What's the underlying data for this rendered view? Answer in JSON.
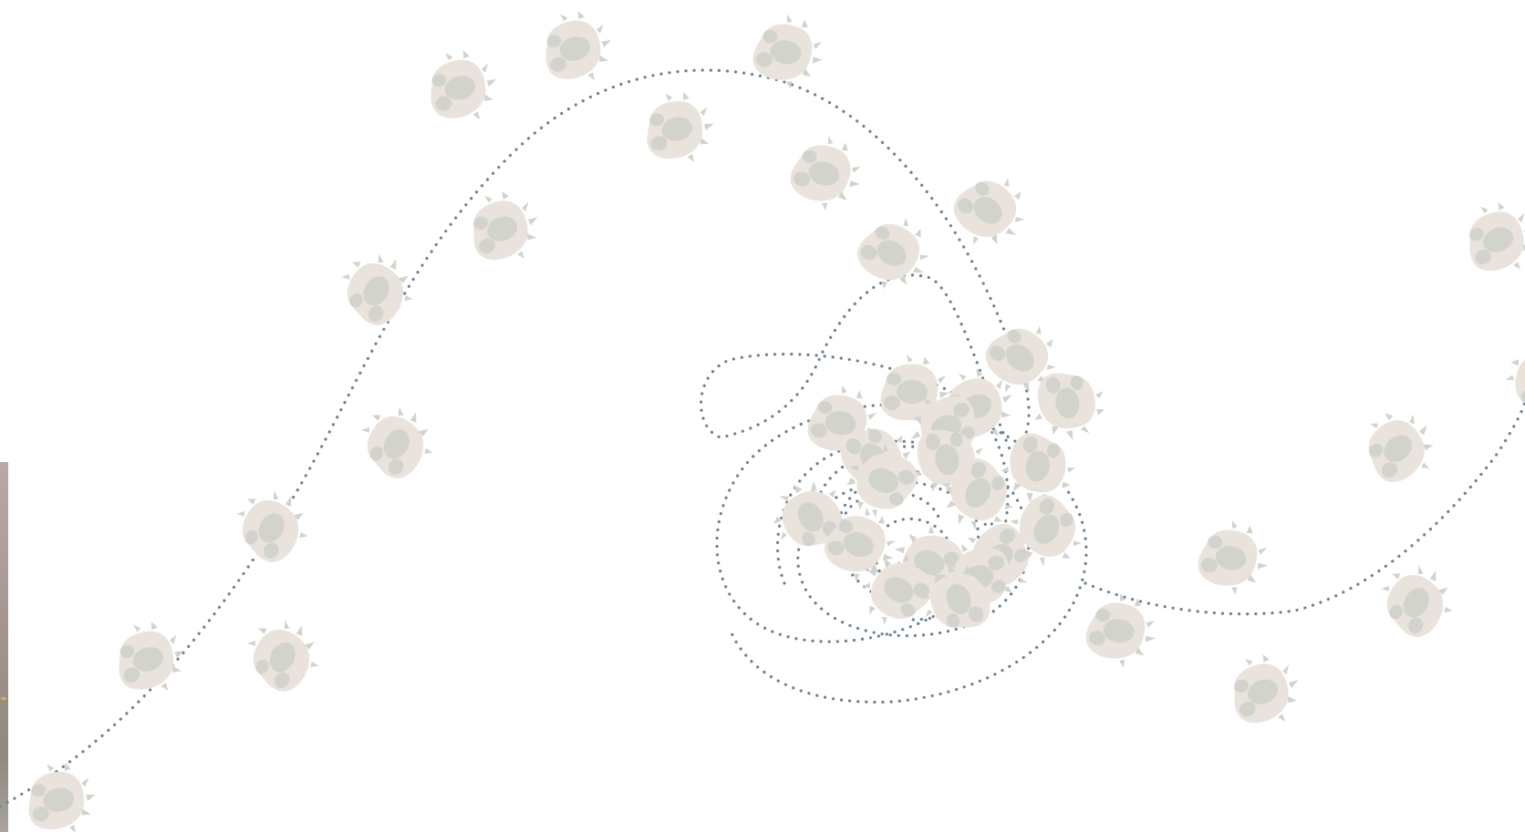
{
  "scene": {
    "description_label": "",
    "colors": {
      "background": "#ffffff",
      "trail": "#6b8291",
      "paw_outer": "#e9e3dc",
      "paw_inner": "#d3d3cd",
      "edge_photo": "#a89a94"
    },
    "icons": {
      "paw": "paw-print-icon",
      "trail": "dotted-trail"
    },
    "paw_count": 44
  }
}
